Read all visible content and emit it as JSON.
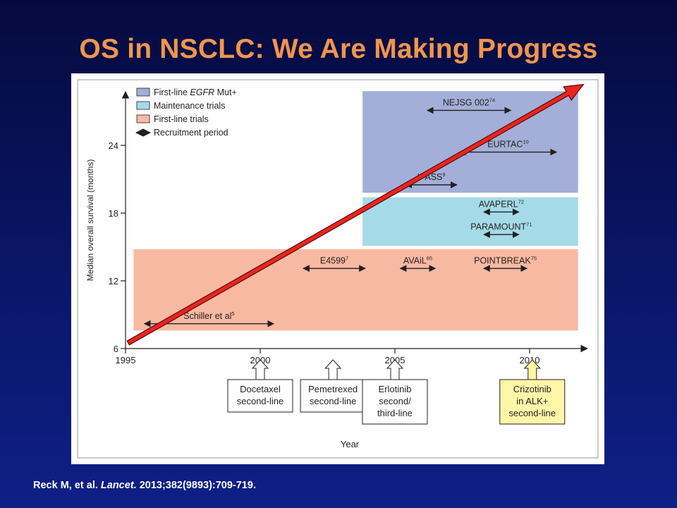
{
  "slide": {
    "title": "OS in NSCLC: We Are Making Progress",
    "citation": {
      "authors": "Reck M, et al.",
      "journal": "Lancet.",
      "details": "2013;382(9893):709-719."
    }
  },
  "chart_data": {
    "type": "timeline",
    "xlabel": "Year",
    "ylabel": "Median overall survival (months)",
    "xlim": [
      1995,
      2012.2
    ],
    "ylim": [
      6,
      30
    ],
    "xticks": [
      1995,
      2000,
      2005,
      2010
    ],
    "yticks": [
      6,
      12,
      18,
      24
    ],
    "legend": {
      "placement": "top-left",
      "entries": [
        {
          "label_prefix": "First-line ",
          "label_italic": "EGFR",
          "label_suffix": " Mut+",
          "color": "#a3afd8",
          "kind": "box"
        },
        {
          "label_prefix": "Maintenance trials",
          "label_italic": "",
          "label_suffix": "",
          "color": "#a5dbe8",
          "kind": "box"
        },
        {
          "label_prefix": "First-line trials",
          "label_italic": "",
          "label_suffix": "",
          "color": "#f8b9a2",
          "kind": "box"
        },
        {
          "label_prefix": "Recruitment period",
          "label_italic": "",
          "label_suffix": "",
          "color": "#231f20",
          "kind": "arrow"
        }
      ]
    },
    "bands": [
      {
        "name": "First-line EGFR Mut+",
        "x0": 2003.8,
        "x1": 2011.8,
        "y0": 19.8,
        "y1": 28.8,
        "color": "#a3afd8"
      },
      {
        "name": "Maintenance trials",
        "x0": 2003.8,
        "x1": 2011.8,
        "y0": 15.1,
        "y1": 19.4,
        "color": "#a5dbe8"
      },
      {
        "name": "First-line trials",
        "x0": 1995.3,
        "x1": 2011.8,
        "y0": 7.6,
        "y1": 14.8,
        "color": "#f8b9a2"
      }
    ],
    "trials": [
      {
        "name": "NEJSG 002",
        "ref": "74",
        "start": 2006.2,
        "end": 2009.3,
        "y": 27.1
      },
      {
        "name": "EURTAC",
        "ref": "10",
        "start": 2007.4,
        "end": 2011.0,
        "y": 23.4
      },
      {
        "name": "IPASS",
        "ref": "9",
        "start": 2005.4,
        "end": 2007.3,
        "y": 20.5
      },
      {
        "name": "AVAPERL",
        "ref": "72",
        "start": 2008.3,
        "end": 2009.6,
        "y": 18.1
      },
      {
        "name": "PARAMOUNT",
        "ref": "71",
        "start": 2008.3,
        "end": 2009.6,
        "y": 16.1
      },
      {
        "name": "E4599",
        "ref": "7",
        "start": 2001.6,
        "end": 2003.9,
        "y": 13.1
      },
      {
        "name": "AVAiL",
        "ref": "65",
        "start": 2005.2,
        "end": 2006.5,
        "y": 13.1
      },
      {
        "name": "POINTBREAK",
        "ref": "75",
        "start": 2008.3,
        "end": 2009.9,
        "y": 13.1
      },
      {
        "name": "Schiller et al",
        "ref": "5",
        "start": 1995.7,
        "end": 2000.5,
        "y": 8.2
      }
    ],
    "approvals": [
      {
        "x": 2000.0,
        "lines": [
          "Docetaxel",
          "second-line"
        ],
        "highlight": false
      },
      {
        "x": 2002.7,
        "lines": [
          "Pemetrexed",
          "second-line"
        ],
        "highlight": false
      },
      {
        "x": 2005.0,
        "lines": [
          "Erlotinib",
          "second/",
          "third-line"
        ],
        "highlight": false
      },
      {
        "x": 2010.1,
        "lines": [
          "Crizotinib",
          "in ALK+",
          "second-line"
        ],
        "highlight": true
      }
    ],
    "trend_arrow": {
      "from": [
        1995.1,
        6.5
      ],
      "to": [
        2012.0,
        29.4
      ],
      "color": "#e8251f"
    }
  }
}
